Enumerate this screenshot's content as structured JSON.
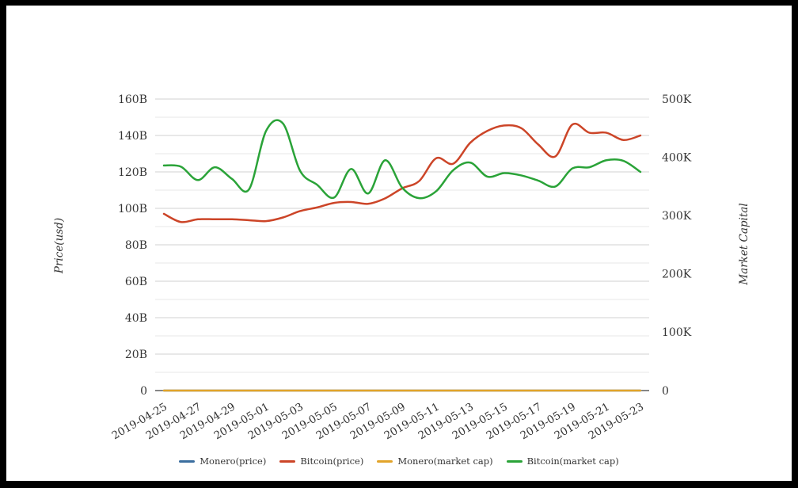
{
  "chart_data": {
    "type": "line",
    "smooth": true,
    "grid": true,
    "title": "",
    "categories": [
      "2019-04-25",
      "2019-04-26",
      "2019-04-27",
      "2019-04-28",
      "2019-04-29",
      "2019-04-30",
      "2019-05-01",
      "2019-05-02",
      "2019-05-03",
      "2019-05-04",
      "2019-05-05",
      "2019-05-06",
      "2019-05-07",
      "2019-05-08",
      "2019-05-09",
      "2019-05-10",
      "2019-05-11",
      "2019-05-12",
      "2019-05-13",
      "2019-05-14",
      "2019-05-15",
      "2019-05-16",
      "2019-05-17",
      "2019-05-18",
      "2019-05-19",
      "2019-05-20",
      "2019-05-21",
      "2019-05-22",
      "2019-05-23"
    ],
    "x_tick_every": 2,
    "x_label_rotation": -30,
    "y_left": {
      "title": "Price(usd)",
      "unit": "B",
      "max_value": 160,
      "grid_step": 10,
      "tick_labels": [
        "0",
        "20B",
        "40B",
        "60B",
        "80B",
        "100B",
        "120B",
        "140B",
        "160B"
      ]
    },
    "y_right": {
      "title": "Market Capital",
      "unit": "K",
      "max_value": 500,
      "tick_labels": [
        "0",
        "100K",
        "200K",
        "300K",
        "400K",
        "500K"
      ]
    },
    "series": [
      {
        "name": "Monero(price)",
        "color": "#3b6e9f",
        "axis": "left",
        "values": [
          0,
          0,
          0,
          0,
          0,
          0,
          0,
          0,
          0,
          0,
          0,
          0,
          0,
          0,
          0,
          0,
          0,
          0,
          0,
          0,
          0,
          0,
          0,
          0,
          0,
          0,
          0,
          0,
          0
        ]
      },
      {
        "name": "Bitcoin(price)",
        "color": "#cc4528",
        "axis": "left",
        "values": [
          97,
          92.5,
          94,
          94,
          94,
          93.5,
          93,
          95,
          98.5,
          100.5,
          103,
          103.5,
          102.5,
          105.5,
          111,
          115,
          127.5,
          124.5,
          136,
          142.5,
          145.5,
          144,
          135,
          128.5,
          146,
          141.5,
          141.5,
          137.5,
          140
        ]
      },
      {
        "name": "Monero(market cap)",
        "color": "#e2a42a",
        "axis": "right",
        "values": [
          0,
          0,
          0,
          0,
          0,
          0,
          0,
          0,
          0,
          0,
          0,
          0,
          0,
          0,
          0,
          0,
          0,
          0,
          0,
          0,
          0,
          0,
          0,
          0,
          0,
          0,
          0,
          0,
          0
        ]
      },
      {
        "name": "Bitcoin(market cap)",
        "color": "#2aa338",
        "axis": "right",
        "values": [
          386,
          384,
          361,
          383,
          363,
          345,
          445,
          458,
          377,
          353,
          331,
          380,
          338,
          395,
          348,
          330,
          342,
          378,
          391,
          367,
          373,
          369,
          360,
          350,
          381,
          383,
          395,
          394,
          375
        ]
      }
    ],
    "legend_position": "bottom"
  },
  "legend": {
    "items": [
      "Monero(price)",
      "Bitcoin(price)",
      "Monero(market cap)",
      "Bitcoin(market cap)"
    ]
  }
}
